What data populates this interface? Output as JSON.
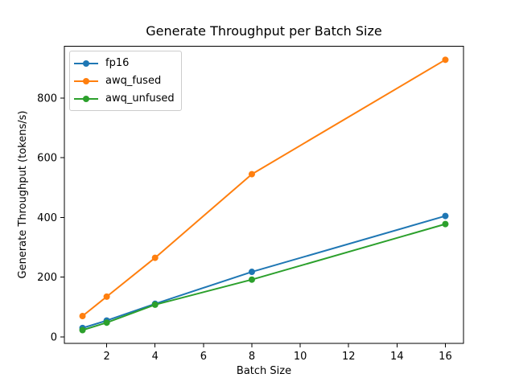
{
  "chart_data": {
    "type": "line",
    "title": "Generate Throughput per Batch Size",
    "xlabel": "Batch Size",
    "ylabel": "Generate Throughput (tokens/s)",
    "x": [
      1,
      2,
      4,
      8,
      16
    ],
    "series": [
      {
        "name": "fp16",
        "color": "#1f77b4",
        "values": [
          30,
          55,
          111,
          218,
          405
        ]
      },
      {
        "name": "awq_fused",
        "color": "#ff7f0e",
        "values": [
          70,
          135,
          265,
          545,
          928
        ]
      },
      {
        "name": "awq_unfused",
        "color": "#2ca02c",
        "values": [
          23,
          48,
          108,
          192,
          378
        ]
      }
    ],
    "xlim": [
      0.25,
      16.75
    ],
    "ylim": [
      -22,
      973
    ],
    "xticks": [
      2,
      4,
      6,
      8,
      10,
      12,
      14,
      16
    ],
    "yticks": [
      0,
      200,
      400,
      600,
      800
    ],
    "grid": false,
    "marker": "o",
    "line_width": 2,
    "legend_position": "upper left",
    "axis_color": "#000000",
    "background_color": "#ffffff",
    "legend_border_color": "#cccccc"
  }
}
